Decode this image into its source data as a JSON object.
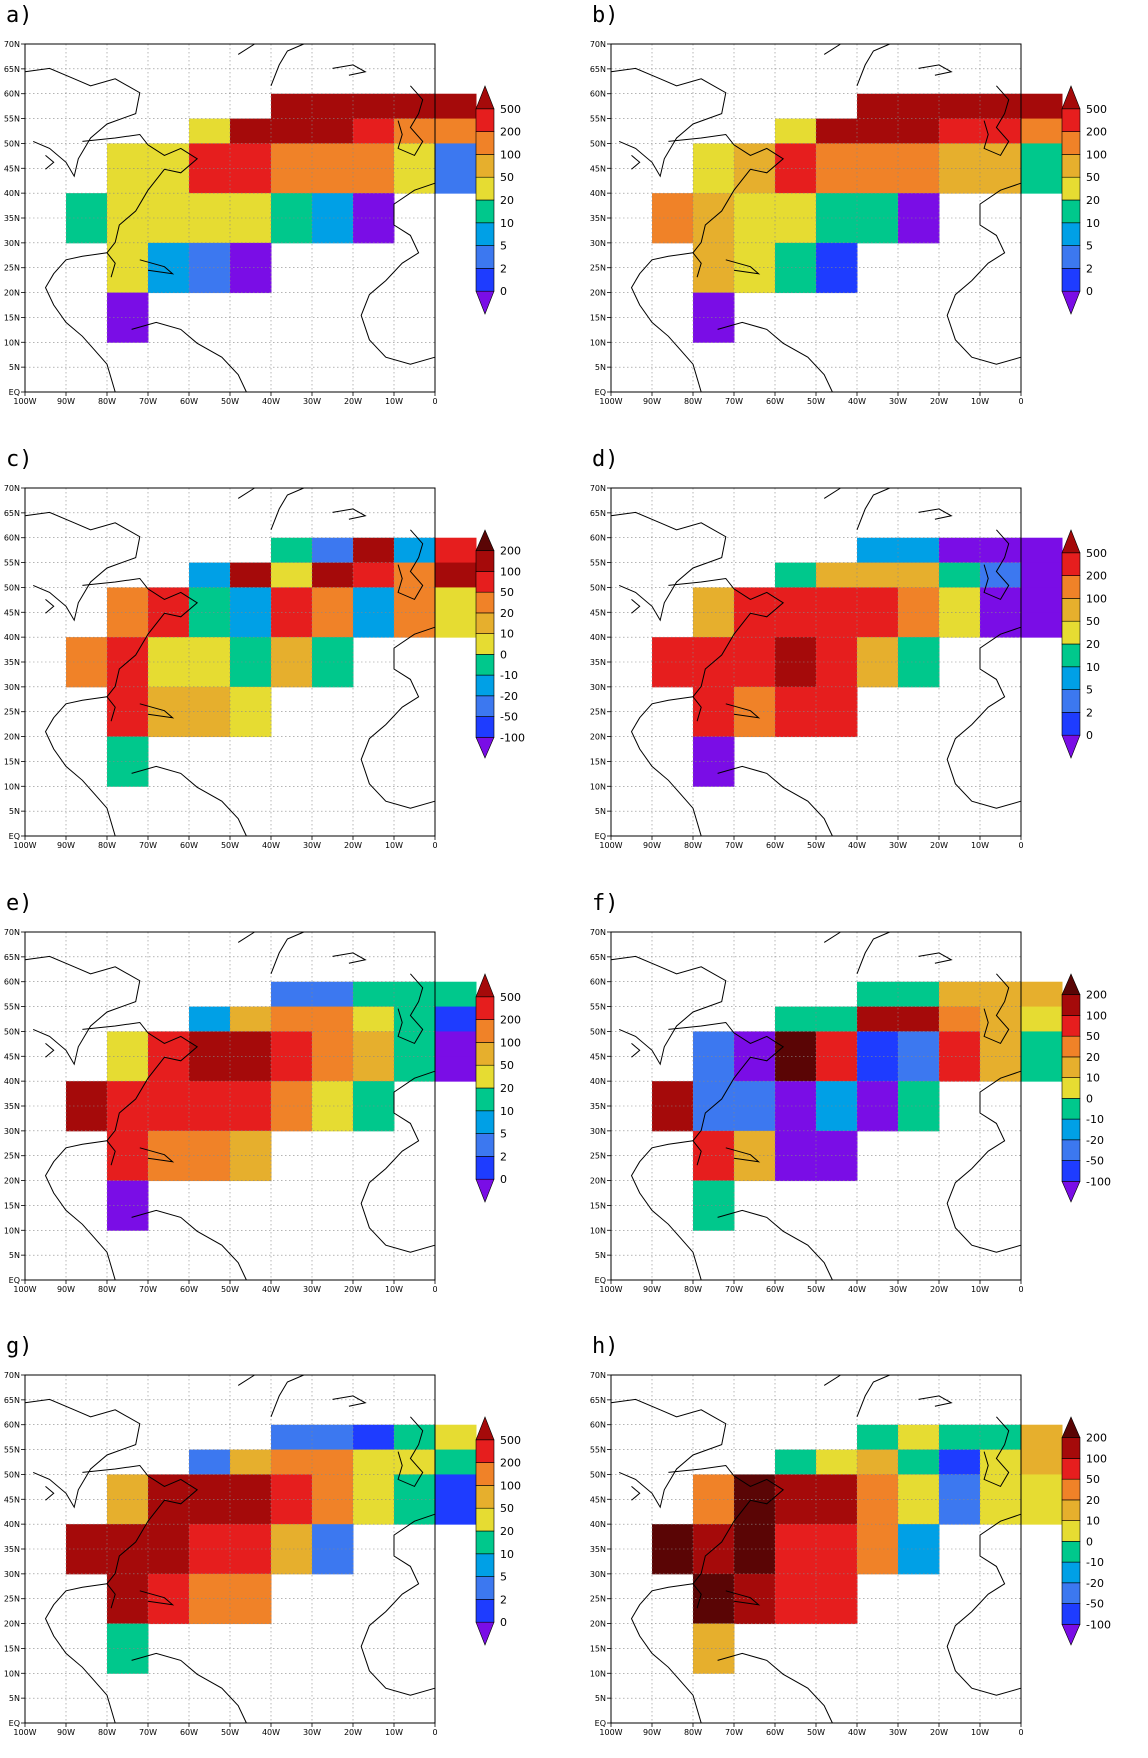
{
  "colors": {
    "A": "#7a0de6",
    "B": "#1e3cff",
    "C": "#3c78f0",
    "D": "#00a0e6",
    "E": "#00c88c",
    "F": "#e6dc32",
    "G": "#e6af2d",
    "H": "#f08228",
    "I": "#e61e1e",
    "J": "#a50a0a",
    "K": "#5a0505"
  },
  "colorbars": {
    "levels": [
      "0",
      "2",
      "5",
      "10",
      "20",
      "50",
      "100",
      "200",
      "500"
    ],
    "diff": [
      "-100",
      "-50",
      "-20",
      "-10",
      "0",
      "10",
      "20",
      "50",
      "100",
      "200"
    ]
  },
  "axes": {
    "x_ticks": [
      "100W",
      "90W",
      "80W",
      "70W",
      "60W",
      "50W",
      "40W",
      "30W",
      "20W",
      "10W",
      "0"
    ],
    "y_ticks": [
      "EQ",
      "5N",
      "10N",
      "15N",
      "20N",
      "25N",
      "30N",
      "35N",
      "40N",
      "45N",
      "50N",
      "55N",
      "60N",
      "65N",
      "70N"
    ]
  },
  "chart_data": [
    {
      "type": "heatmap",
      "label": "a)",
      "colorbar": "levels",
      "x": "10-degree boxes 100W–0",
      "y": "10-degree boxes 0–60N",
      "categories": [
        "0",
        "2",
        "5",
        "10",
        "20",
        "50",
        "100",
        "200",
        "500"
      ],
      "grid": [
        "......JJJJJ",
        "....FJJJIHH",
        "..FFIIHHHFC",
        "..FFIIHHHFC",
        ".EFFFFEDA..",
        ".EFFFFEDA..",
        "..FDCA.....",
        "..FDCA.....",
        "..A........",
        "..A........"
      ]
    },
    {
      "type": "heatmap",
      "label": "b)",
      "colorbar": "levels",
      "x": "10-degree boxes 100W–0",
      "y": "10-degree boxes 0–60N",
      "categories": [
        "0",
        "2",
        "5",
        "10",
        "20",
        "50",
        "100",
        "200",
        "500"
      ],
      "grid": [
        "......JJJJJ",
        "....FJJJIIH",
        "..FGIHHHGGE",
        "..FGIHHHGGE",
        ".HGFFEEA...",
        ".HGFFEEA...",
        "..GFEB.....",
        "..GFEB.....",
        "..A........",
        "..A........"
      ]
    },
    {
      "type": "heatmap",
      "label": "c)",
      "colorbar": "diff",
      "x": "10-degree boxes 100W–0",
      "y": "10-degree boxes 0–60N",
      "categories": [
        "-100",
        "-50",
        "-20",
        "-10",
        "0",
        "10",
        "20",
        "50",
        "100",
        "200"
      ],
      "grid": [
        "......ECJDI",
        "....DJFJIHJ",
        "..HIEDIHDHF",
        "..HIEDIHDHF",
        ".HIFFEGE...",
        ".HIFFEGE...",
        "..IGGF.....",
        "..IGGF.....",
        "..E........",
        "..E........"
      ]
    },
    {
      "type": "heatmap",
      "label": "d)",
      "colorbar": "levels",
      "x": "10-degree boxes 100W–0",
      "y": "10-degree boxes 0–60N",
      "categories": [
        "0",
        "2",
        "5",
        "10",
        "20",
        "50",
        "100",
        "200",
        "500"
      ],
      "grid": [
        "......DDAAA",
        "....EGGGECA",
        "..GIIIIHFAA",
        "..GIIIIHFAA",
        ".IIIJIGE...",
        ".IIIJIGE...",
        "..IHII.....",
        "..IHII.....",
        "..A........",
        "..A........"
      ]
    },
    {
      "type": "heatmap",
      "label": "e)",
      "colorbar": "levels",
      "x": "10-degree boxes 100W–0",
      "y": "10-degree boxes 0–60N",
      "categories": [
        "0",
        "2",
        "5",
        "10",
        "20",
        "50",
        "100",
        "200",
        "500"
      ],
      "grid": [
        "......CCEEE",
        "....DGHHFEB",
        "..FIJJIHGEA",
        "..FIJJIHGEA",
        ".JIIIIHFE..",
        ".JIIIIHFE..",
        "..IHHG.....",
        "..IHHG.....",
        "..A........",
        "..A........"
      ]
    },
    {
      "type": "heatmap",
      "label": "f)",
      "colorbar": "diff",
      "x": "10-degree boxes 100W–0",
      "y": "10-degree boxes 0–60N",
      "categories": [
        "-100",
        "-50",
        "-20",
        "-10",
        "0",
        "10",
        "20",
        "50",
        "100",
        "200"
      ],
      "grid": [
        "......EEGGG",
        "....EEJJHGF",
        "..CAKIBCIGE",
        "..CAKIBCIGE",
        ".JCCADAE...",
        ".JCCADAE...",
        "..IGAA.....",
        "..IGAA.....",
        "..E........",
        "..E........"
      ]
    },
    {
      "type": "heatmap",
      "label": "g)",
      "colorbar": "levels",
      "x": "10-degree boxes 100W–0",
      "y": "10-degree boxes 0–60N",
      "categories": [
        "0",
        "2",
        "5",
        "10",
        "20",
        "50",
        "100",
        "200",
        "500"
      ],
      "grid": [
        "......CCBEF",
        "....CGHHFFE",
        "..GJJJIHFEB",
        "..GJJJIHFEB",
        ".JJJIIGC...",
        ".JJJIIGC...",
        "..JIHH.....",
        "..JIHH.....",
        "..E........",
        "..E........"
      ]
    },
    {
      "type": "heatmap",
      "label": "h)",
      "colorbar": "diff",
      "x": "10-degree boxes 100W–0",
      "y": "10-degree boxes 0–60N",
      "categories": [
        "-100",
        "-50",
        "-20",
        "-10",
        "0",
        "10",
        "20",
        "50",
        "100",
        "200"
      ],
      "grid": [
        "......EFEEG",
        "....EFGEBFG",
        "..HKJJHFCFF",
        "..HKJJHFCFF",
        ".KJKIIHD...",
        ".KJKIIHD...",
        "..KJII.....",
        "..KJII.....",
        "..G........",
        "..G........"
      ]
    }
  ]
}
